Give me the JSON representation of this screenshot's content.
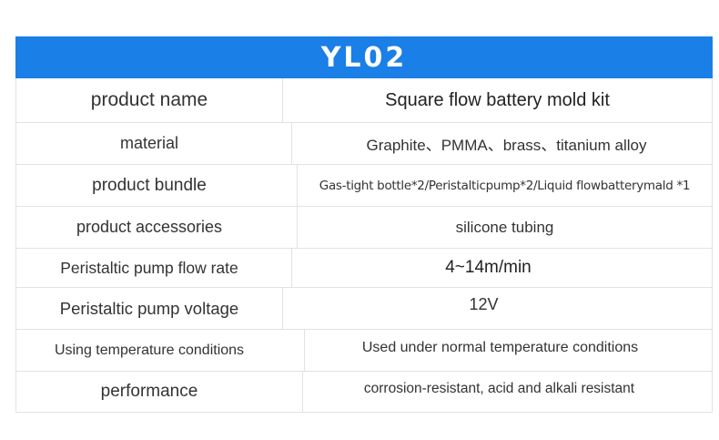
{
  "title": "YL02",
  "header_color": "#1a7fe6",
  "rows": [
    {
      "label": "product name",
      "value": "Square flow battery mold kit"
    },
    {
      "label": "material",
      "value": "Graphite、PMMA、brass、titanium alloy"
    },
    {
      "label": "product bundle",
      "value": "Gas-tight bottle*2/Peristalticpump*2/Liquid flowbatterymald *1"
    },
    {
      "label": "product accessories",
      "value": "silicone tubing"
    },
    {
      "label": "Peristaltic pump flow rate",
      "value": "4~14m/min"
    },
    {
      "label": "Peristaltic pump voltage",
      "value": "12V"
    },
    {
      "label": "Using temperature conditions",
      "value": "Used under normal temperature conditions"
    },
    {
      "label": "performance",
      "value": "corrosion-resistant, acid and alkali resistant"
    }
  ]
}
